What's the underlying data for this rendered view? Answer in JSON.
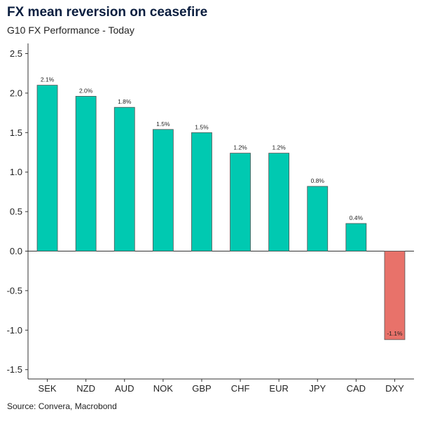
{
  "title": "FX mean reversion on ceasefire",
  "subtitle": "G10 FX Performance - Today",
  "source": "Source: Convera, Macrobond",
  "colors": {
    "positive": "#00c9b1",
    "negative": "#e8726a",
    "axis": "#333333"
  },
  "chart_data": {
    "type": "bar",
    "title": "FX mean reversion on ceasefire",
    "subtitle": "G10 FX Performance - Today",
    "categories": [
      "SEK",
      "NZD",
      "AUD",
      "NOK",
      "GBP",
      "CHF",
      "EUR",
      "JPY",
      "CAD",
      "DXY"
    ],
    "values": [
      2.1,
      1.96,
      1.82,
      1.54,
      1.5,
      1.24,
      1.24,
      0.82,
      0.35,
      -1.12
    ],
    "data_labels": [
      "2.1%",
      "2.0%",
      "1.8%",
      "1.5%",
      "1.5%",
      "1.2%",
      "1.2%",
      "0.8%",
      "0.4%",
      "-1.1%"
    ],
    "y_ticks": [
      "2.5",
      "2.0",
      "1.5",
      "1.0",
      "0.5",
      "0.0",
      "-0.5",
      "-1.0",
      "-1.5"
    ],
    "ylim": [
      -1.5,
      2.5
    ],
    "xlabel": "",
    "ylabel": "",
    "grid": false,
    "legend": "none"
  }
}
